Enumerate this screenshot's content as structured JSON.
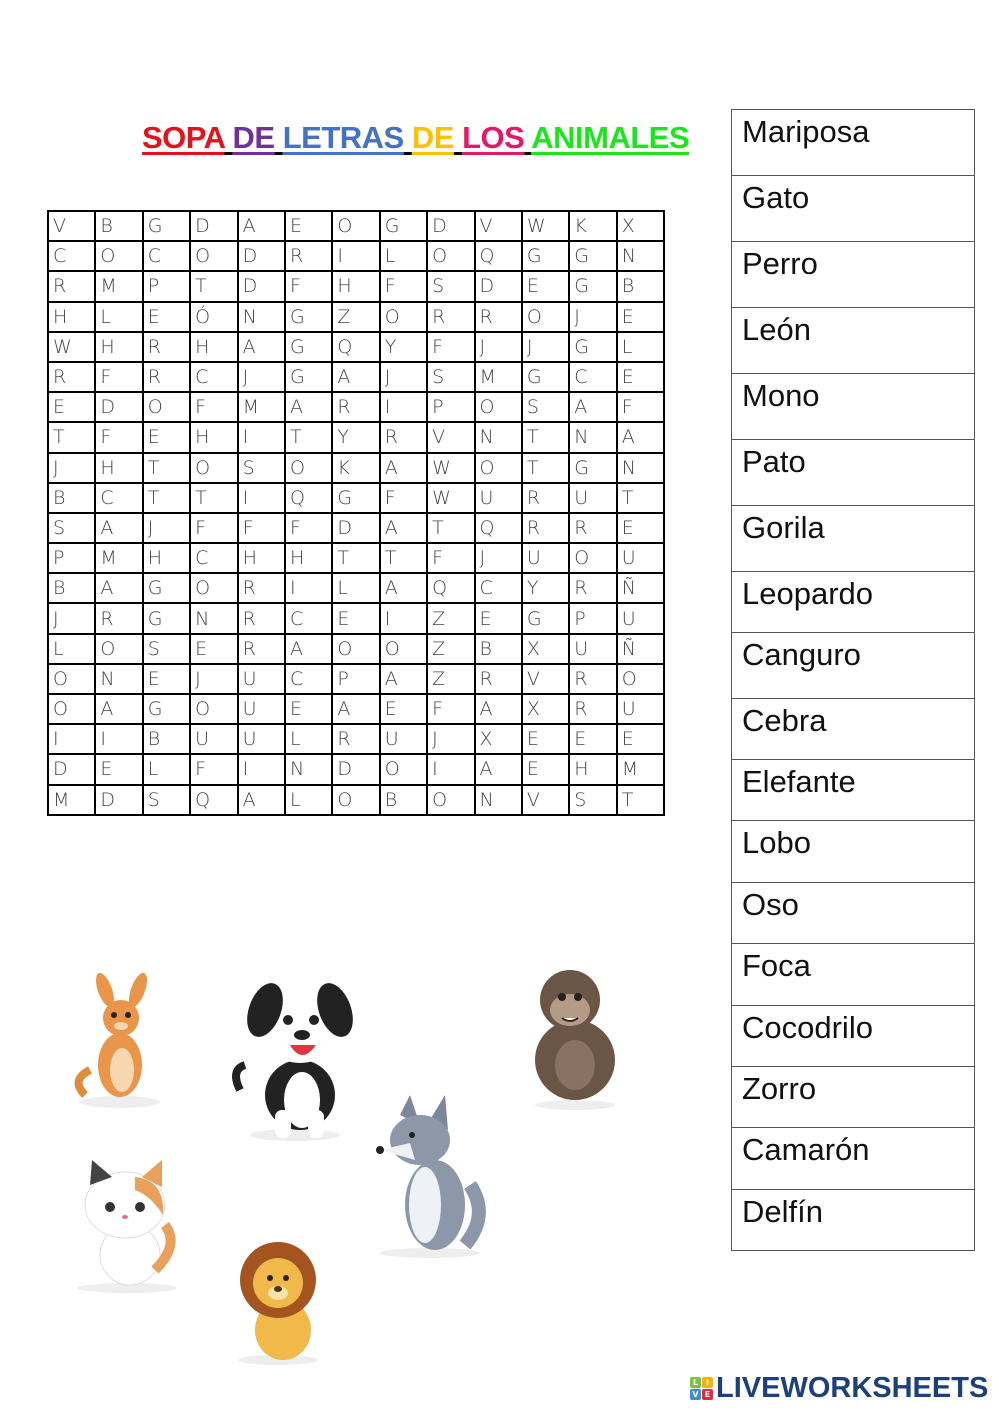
{
  "title": {
    "parts": [
      {
        "text": "SOPA",
        "color": "#e8101a"
      },
      {
        "text": "DE",
        "color": "#7030a0"
      },
      {
        "text": "LETRAS",
        "color": "#4472c4"
      },
      {
        "text": "DE",
        "color": "#ffc000"
      },
      {
        "text": "LOS",
        "color": "#e6176b"
      },
      {
        "text": "ANIMALES",
        "color": "#1be61b"
      }
    ]
  },
  "grid": [
    "VBGDAEOGDVWKX",
    "COCODRILOQGGN",
    "RMPTDFHFSDEGB",
    "HLEÓNGZORROJE",
    "WHRHAGQYFJJGL",
    "RFRCJGAJSMGCE",
    "EDOFMARIPOSAF",
    "TFEHITYRVNTNA",
    "JHTOSOKAWOTGN",
    "BCTTIQGFWURUT",
    "SAJFFFDATQRRE",
    "PMHCHHTTFJUOU",
    "BAGORILAQCYRÑ",
    "JRGNRCEIZEGPU",
    "LOSERAOOZBXUÑ",
    "ONEJUCPAZRVRO",
    "OAGOUEAEFAXRU",
    "IIBUULRUJXEEE",
    "DELFINDOIAEHM",
    "MDSQALOBONVST"
  ],
  "words": [
    "Mariposa",
    "Gato",
    "Perro",
    "León",
    "Mono",
    "Pato",
    "Gorila",
    "Leopardo",
    "Canguro",
    "Cebra",
    "Elefante",
    "Lobo",
    "Oso",
    "Foca",
    "Cocodrilo",
    "Zorro",
    "Camarón",
    "Delfín"
  ],
  "animals": [
    "kangaroo",
    "dog",
    "gorilla",
    "wolf",
    "cat",
    "lion"
  ],
  "logo": {
    "text": "LIVEWORKSHEETS",
    "badge": [
      "L",
      "I",
      "V",
      "E"
    ],
    "badge_colors": [
      "#7cc242",
      "#f7b500",
      "#3b8fd9",
      "#e3273c"
    ],
    "color": "#1d3f7a"
  }
}
